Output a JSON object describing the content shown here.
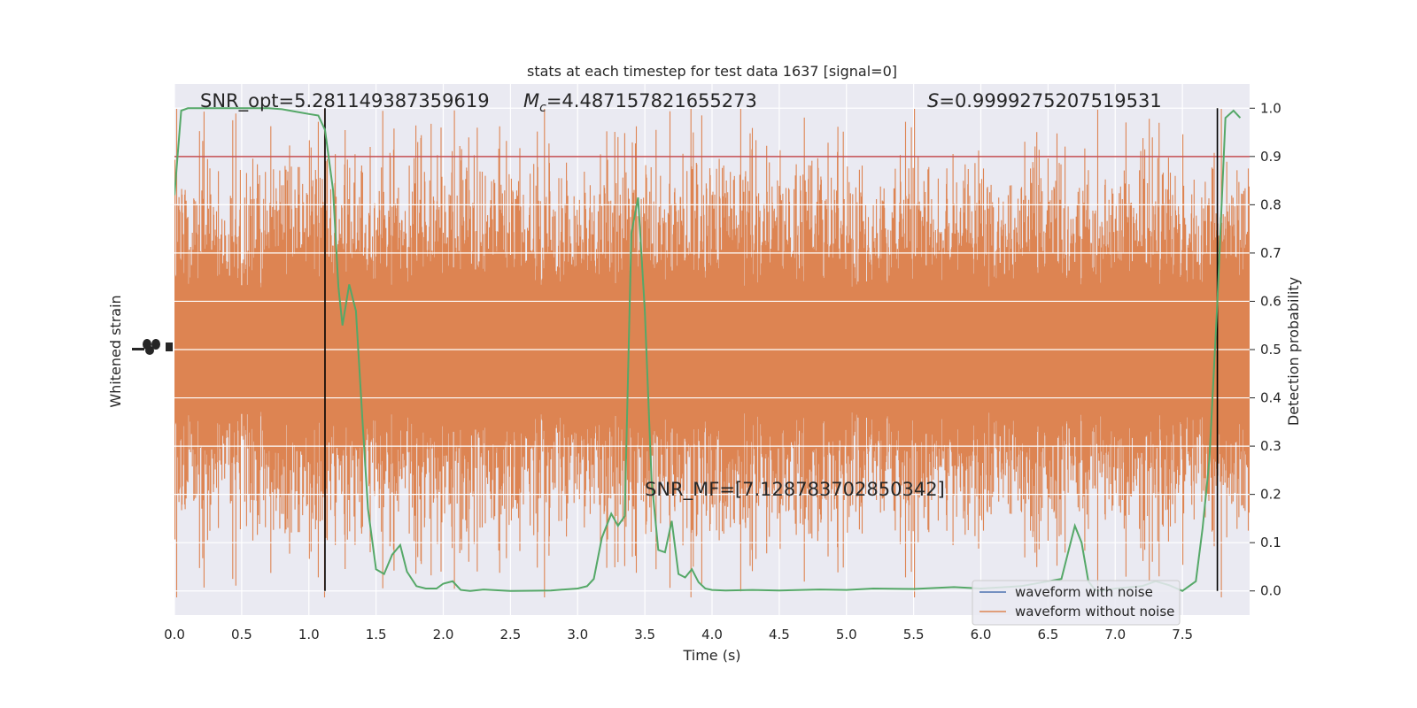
{
  "chart_data": {
    "type": "line",
    "title": "stats at each timestep for test data 1637 [signal=0]",
    "xlabel": "Time (s)",
    "ylabel_left": "Whitened strain",
    "ylabel_right": "Detection probability",
    "xlim": [
      0.0,
      8.0
    ],
    "ylim_right": [
      -0.05,
      1.05
    ],
    "x_ticks": [
      "0.0",
      "0.5",
      "1.0",
      "1.5",
      "2.0",
      "2.5",
      "3.0",
      "3.5",
      "4.0",
      "4.5",
      "5.0",
      "5.5",
      "6.0",
      "6.5",
      "7.0",
      "7.5"
    ],
    "y_right_ticks": [
      "0.0",
      "0.1",
      "0.2",
      "0.3",
      "0.4",
      "0.5",
      "0.6",
      "0.7",
      "0.8",
      "0.9",
      "1.0"
    ],
    "grid": true,
    "legend_position": "lower-right",
    "annotations": {
      "snr_opt": "SNR_opt=5.281149387359619",
      "mc_symbol": "M",
      "mc_sub": "c",
      "mc_value": "=4.487157821655273",
      "s_symbol": "S",
      "s_value": "=0.9999275207519531",
      "snr_mf": "SNR_MF=[7.128783702850342]"
    },
    "threshold": 0.9,
    "vertical_markers_x": [
      1.12,
      7.76
    ],
    "series": [
      {
        "name": "waveform with noise",
        "color": "#4c72b0"
      },
      {
        "name": "waveform without noise",
        "color": "#dd8452"
      }
    ],
    "detection_probability": {
      "color": "#55a868",
      "x": [
        0.0,
        0.05,
        0.1,
        0.2,
        0.3,
        0.4,
        0.5,
        0.6,
        0.7,
        0.8,
        0.9,
        1.0,
        1.07,
        1.12,
        1.18,
        1.22,
        1.25,
        1.3,
        1.35,
        1.4,
        1.44,
        1.5,
        1.56,
        1.62,
        1.68,
        1.73,
        1.8,
        1.87,
        1.95,
        2.0,
        2.07,
        2.13,
        2.2,
        2.3,
        2.5,
        2.8,
        3.0,
        3.07,
        3.12,
        3.18,
        3.25,
        3.3,
        3.35,
        3.4,
        3.45,
        3.5,
        3.55,
        3.6,
        3.65,
        3.7,
        3.75,
        3.8,
        3.85,
        3.9,
        3.95,
        4.0,
        4.1,
        4.3,
        4.5,
        4.8,
        5.0,
        5.2,
        5.5,
        5.8,
        6.0,
        6.3,
        6.6,
        6.7,
        6.75,
        6.8,
        6.85,
        6.9,
        7.0,
        7.2,
        7.3,
        7.4,
        7.5,
        7.6,
        7.65,
        7.7,
        7.76,
        7.82,
        7.88,
        7.93
      ],
      "y": [
        0.82,
        0.995,
        1.0,
        1.0,
        1.0,
        1.0,
        1.0,
        1.0,
        1.0,
        0.998,
        0.993,
        0.988,
        0.985,
        0.955,
        0.83,
        0.63,
        0.55,
        0.635,
        0.58,
        0.35,
        0.17,
        0.045,
        0.035,
        0.075,
        0.095,
        0.04,
        0.01,
        0.005,
        0.005,
        0.015,
        0.02,
        0.002,
        0.0,
        0.003,
        0.0,
        0.001,
        0.005,
        0.01,
        0.025,
        0.11,
        0.16,
        0.135,
        0.155,
        0.74,
        0.815,
        0.58,
        0.23,
        0.085,
        0.08,
        0.145,
        0.035,
        0.028,
        0.045,
        0.018,
        0.005,
        0.002,
        0.001,
        0.002,
        0.001,
        0.003,
        0.002,
        0.005,
        0.004,
        0.008,
        0.005,
        0.01,
        0.025,
        0.135,
        0.1,
        0.02,
        0.002,
        0.0,
        0.005,
        0.01,
        0.02,
        0.012,
        0.0,
        0.02,
        0.13,
        0.27,
        0.6,
        0.98,
        0.995,
        0.98
      ]
    }
  }
}
